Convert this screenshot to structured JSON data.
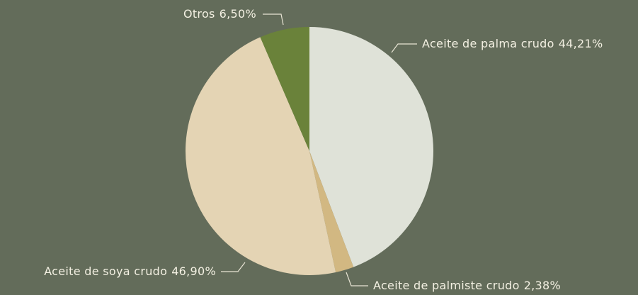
{
  "chart_data": {
    "type": "pie",
    "categories": [
      "Aceite de palma crudo",
      "Aceite de palmiste crudo",
      "Aceite de soya crudo",
      "Otros"
    ],
    "values": [
      44.21,
      2.38,
      46.9,
      6.5
    ],
    "value_labels": [
      "44,21%",
      "2,38%",
      "46,90%",
      "6,50%"
    ],
    "colors": [
      "#dfe2d8",
      "#d2b882",
      "#e4d4b4",
      "#6a823a"
    ]
  }
}
